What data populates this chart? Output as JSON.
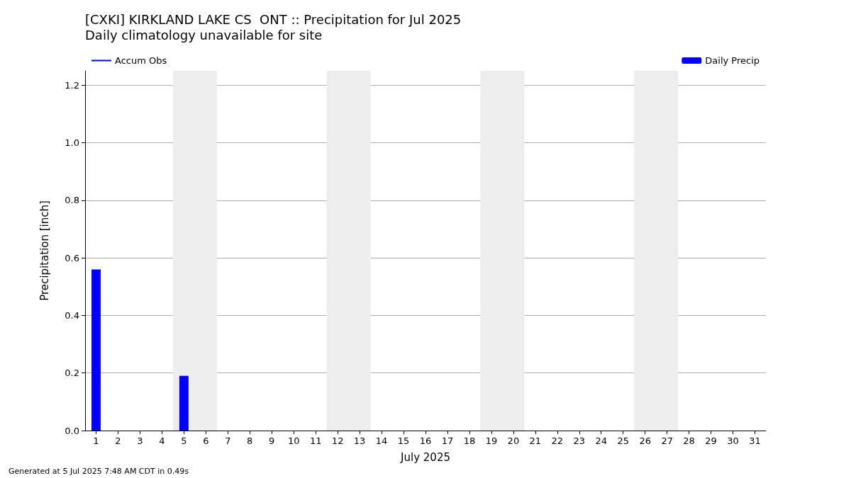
{
  "chart_data": {
    "type": "bar",
    "title": "[CXKI] KIRKLAND LAKE CS  ONT :: Precipitation for Jul 2025",
    "subtitle": "Daily climatology unavailable for site",
    "xlabel": "July 2025",
    "ylabel": "Precipitation [inch]",
    "x": [
      1,
      2,
      3,
      4,
      5,
      6,
      7,
      8,
      9,
      10,
      11,
      12,
      13,
      14,
      15,
      16,
      17,
      18,
      19,
      20,
      21,
      22,
      23,
      24,
      25,
      26,
      27,
      28,
      29,
      30,
      31
    ],
    "series": [
      {
        "name": "Accum Obs",
        "type": "line",
        "color": "#0000ff",
        "values": [
          null,
          null,
          null,
          null,
          null,
          null,
          null,
          null,
          null,
          null,
          null,
          null,
          null,
          null,
          null,
          null,
          null,
          null,
          null,
          null,
          null,
          null,
          null,
          null,
          null,
          null,
          null,
          null,
          null,
          null,
          null
        ]
      },
      {
        "name": "Daily Precip",
        "color": "#0000ff",
        "values": [
          0.56,
          0,
          0,
          0,
          0.19,
          0,
          0,
          0,
          0,
          0,
          0,
          0,
          0,
          0,
          0,
          0,
          0,
          0,
          0,
          0,
          0,
          0,
          0,
          0,
          0,
          0,
          0,
          0,
          0,
          0,
          0
        ]
      }
    ],
    "xlim": [
      0.5,
      31.5
    ],
    "xticks": [
      1,
      2,
      3,
      4,
      5,
      6,
      7,
      8,
      9,
      10,
      11,
      12,
      13,
      14,
      15,
      16,
      17,
      18,
      19,
      20,
      21,
      22,
      23,
      24,
      25,
      26,
      27,
      28,
      29,
      30,
      31
    ],
    "ylim": [
      0,
      1.25
    ],
    "yticks": [
      {
        "value": 0,
        "label": "0.0"
      },
      0.2,
      0.4,
      0.6,
      0.8,
      {
        "value": 1,
        "label": "1.0"
      },
      1.2
    ],
    "bands": [
      {
        "axis": "x",
        "from": 4.5,
        "to": 6.5,
        "color": "#ededed"
      },
      {
        "axis": "x",
        "from": 11.5,
        "to": 13.5,
        "color": "#ededed"
      },
      {
        "axis": "x",
        "from": 18.5,
        "to": 20.5,
        "color": "#ededed"
      },
      {
        "axis": "x",
        "from": 25.5,
        "to": 27.5,
        "color": "#ededed"
      }
    ],
    "grid": "y",
    "legend": "top",
    "annotations": [
      "Generated at 5 Jul 2025 7:48 AM CDT in 0.49s"
    ]
  }
}
